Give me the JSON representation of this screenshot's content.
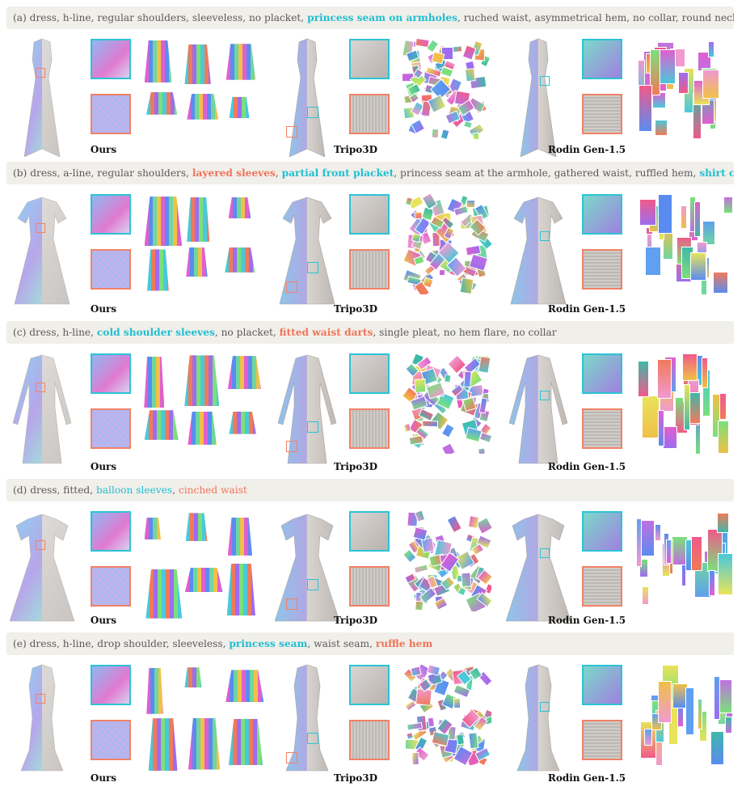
{
  "rows": [
    {
      "id": "a",
      "caption": {
        "tag": "(a)",
        "segments": [
          {
            "text": "dress, h-line, regular shoulders, sleeveless, no placket, ",
            "style": "plain"
          },
          {
            "text": "princess seam on armholes",
            "style": "c"
          },
          {
            "text": ", ruched waist, asymmetrical hem, no collar, round neckline",
            "style": "plain"
          }
        ]
      },
      "labels": [
        "Ours",
        "Tripo3D",
        "Rodin Gen-1.5"
      ]
    },
    {
      "id": "b",
      "caption": {
        "tag": "(b)",
        "segments": [
          {
            "text": "dress, a-line, regular shoulders, ",
            "style": "plain"
          },
          {
            "text": "layered sleeves",
            "style": "o"
          },
          {
            "text": ", ",
            "style": "plain"
          },
          {
            "text": "partial front placket",
            "style": "c"
          },
          {
            "text": ", princess seam at the armhole, gathered waist, ruffled hem, ",
            "style": "plain"
          },
          {
            "text": "shirt collar",
            "style": "c"
          }
        ]
      },
      "labels": [
        "Ours",
        "Tripo3D",
        "Rodin Gen-1.5"
      ]
    },
    {
      "id": "c",
      "caption": {
        "tag": "(c)",
        "segments": [
          {
            "text": "dress, h-line, ",
            "style": "plain"
          },
          {
            "text": "cold shoulder sleeves",
            "style": "c"
          },
          {
            "text": ", no placket, ",
            "style": "plain"
          },
          {
            "text": "fitted waist darts",
            "style": "o"
          },
          {
            "text": ", single pleat, no hem flare, no collar",
            "style": "plain"
          }
        ]
      },
      "labels": [
        "Ours",
        "Tripo3D",
        "Rodin Gen-1.5"
      ]
    },
    {
      "id": "d",
      "caption": {
        "tag": "(d)",
        "segments": [
          {
            "text": "dress, fitted, ",
            "style": "plain"
          },
          {
            "text": "balloon sleeves",
            "style": "cn"
          },
          {
            "text": ", ",
            "style": "plain"
          },
          {
            "text": "cinched waist",
            "style": "on"
          }
        ]
      },
      "labels": [
        "Ours",
        "Tripo3D",
        "Rodin Gen-1.5"
      ]
    },
    {
      "id": "e",
      "caption": {
        "tag": "(e)",
        "segments": [
          {
            "text": "dress, h-line, drop shoulder, sleeveless, ",
            "style": "plain"
          },
          {
            "text": "princess seam",
            "style": "c"
          },
          {
            "text": ", waist seam, ",
            "style": "plain"
          },
          {
            "text": "ruffle hem",
            "style": "o"
          }
        ]
      },
      "labels": [
        "Ours",
        "Tripo3D",
        "Rodin Gen-1.5"
      ]
    }
  ],
  "colors": {
    "caption_bg": "#f1efea",
    "highlight_cyan": "#2cc3d6",
    "highlight_orange": "#f08266",
    "caption_text": "#5a5a5a"
  }
}
